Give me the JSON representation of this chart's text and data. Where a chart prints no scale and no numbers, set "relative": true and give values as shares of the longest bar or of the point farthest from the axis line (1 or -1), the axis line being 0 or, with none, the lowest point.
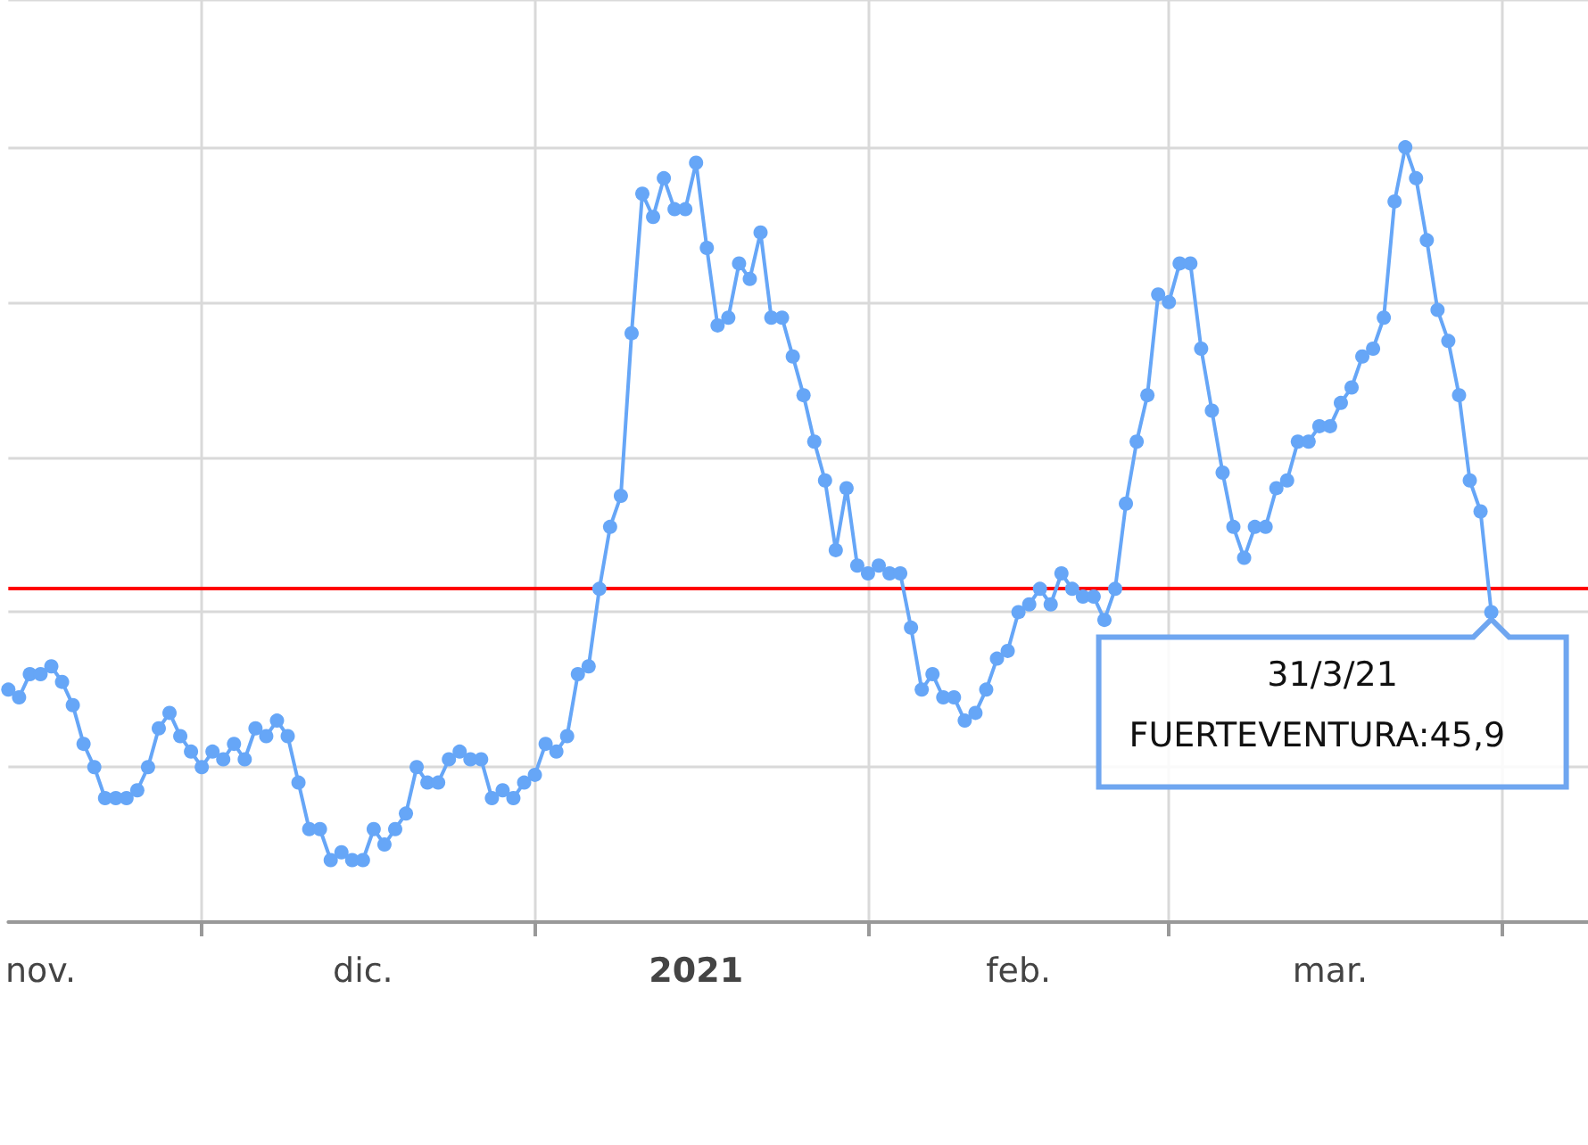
{
  "chart_data": {
    "type": "line",
    "relative": true,
    "grid": true,
    "marker": "circle",
    "line_style": "solid",
    "xlim": [
      "2020-11-13",
      "2021-04-09"
    ],
    "xticks": [
      {
        "value": "2020-11-16",
        "label": "nov."
      },
      {
        "value": "2020-12-01",
        "label": null
      },
      {
        "value": "2020-12-16",
        "label": "dic."
      },
      {
        "value": "2021-01-01",
        "label": null
      },
      {
        "value": "2021-01-16",
        "label": "2021"
      },
      {
        "value": "2021-02-01",
        "label": null
      },
      {
        "value": "2021-02-15",
        "label": "feb."
      },
      {
        "value": "2021-03-01",
        "label": null
      },
      {
        "value": "2021-03-16",
        "label": "mar."
      },
      {
        "value": "2021-04-01",
        "label": null
      }
    ],
    "x": [
      "2020-11-13",
      "2020-11-14",
      "2020-11-15",
      "2020-11-16",
      "2020-11-17",
      "2020-11-18",
      "2020-11-19",
      "2020-11-20",
      "2020-11-21",
      "2020-11-22",
      "2020-11-23",
      "2020-11-24",
      "2020-11-25",
      "2020-11-26",
      "2020-11-27",
      "2020-11-28",
      "2020-11-29",
      "2020-11-30",
      "2020-12-01",
      "2020-12-02",
      "2020-12-03",
      "2020-12-04",
      "2020-12-05",
      "2020-12-06",
      "2020-12-07",
      "2020-12-08",
      "2020-12-09",
      "2020-12-10",
      "2020-12-11",
      "2020-12-12",
      "2020-12-13",
      "2020-12-14",
      "2020-12-15",
      "2020-12-16",
      "2020-12-17",
      "2020-12-18",
      "2020-12-19",
      "2020-12-20",
      "2020-12-21",
      "2020-12-22",
      "2020-12-23",
      "2020-12-24",
      "2020-12-25",
      "2020-12-26",
      "2020-12-27",
      "2020-12-28",
      "2020-12-29",
      "2020-12-30",
      "2020-12-31",
      "2021-01-01",
      "2021-01-02",
      "2021-01-03",
      "2021-01-04",
      "2021-01-05",
      "2021-01-06",
      "2021-01-07",
      "2021-01-08",
      "2021-01-09",
      "2021-01-10",
      "2021-01-11",
      "2021-01-12",
      "2021-01-13",
      "2021-01-14",
      "2021-01-15",
      "2021-01-16",
      "2021-01-17",
      "2021-01-18",
      "2021-01-19",
      "2021-01-20",
      "2021-01-21",
      "2021-01-22",
      "2021-01-23",
      "2021-01-24",
      "2021-01-25",
      "2021-01-26",
      "2021-01-27",
      "2021-01-28",
      "2021-01-29",
      "2021-01-30",
      "2021-01-31",
      "2021-02-01",
      "2021-02-02",
      "2021-02-03",
      "2021-02-04",
      "2021-02-05",
      "2021-02-06",
      "2021-02-07",
      "2021-02-08",
      "2021-02-09",
      "2021-02-10",
      "2021-02-11",
      "2021-02-12",
      "2021-02-13",
      "2021-02-14",
      "2021-02-15",
      "2021-02-16",
      "2021-02-17",
      "2021-02-18",
      "2021-02-19",
      "2021-02-20",
      "2021-02-21",
      "2021-02-22",
      "2021-02-23",
      "2021-02-24",
      "2021-02-25",
      "2021-02-26",
      "2021-02-27",
      "2021-02-28",
      "2021-03-01",
      "2021-03-02",
      "2021-03-03",
      "2021-03-04",
      "2021-03-05",
      "2021-03-06",
      "2021-03-07",
      "2021-03-08",
      "2021-03-09",
      "2021-03-10",
      "2021-03-11",
      "2021-03-12",
      "2021-03-13",
      "2021-03-14",
      "2021-03-15",
      "2021-03-16",
      "2021-03-17",
      "2021-03-18",
      "2021-03-19",
      "2021-03-20",
      "2021-03-21",
      "2021-03-22",
      "2021-03-23",
      "2021-03-24",
      "2021-03-25",
      "2021-03-26",
      "2021-03-27",
      "2021-03-28",
      "2021-03-29",
      "2021-03-30",
      "2021-03-31"
    ],
    "series": [
      {
        "color": "#66a6f7",
        "values": [
          0.3,
          0.29,
          0.32,
          0.32,
          0.33,
          0.31,
          0.28,
          0.23,
          0.2,
          0.16,
          0.16,
          0.16,
          0.17,
          0.2,
          0.25,
          0.27,
          0.24,
          0.22,
          0.2,
          0.22,
          0.21,
          0.23,
          0.21,
          0.25,
          0.24,
          0.26,
          0.24,
          0.18,
          0.12,
          0.12,
          0.08,
          0.09,
          0.08,
          0.08,
          0.12,
          0.1,
          0.12,
          0.14,
          0.2,
          0.18,
          0.18,
          0.21,
          0.22,
          0.21,
          0.21,
          0.16,
          0.17,
          0.16,
          0.18,
          0.19,
          0.23,
          0.22,
          0.24,
          0.32,
          0.33,
          0.43,
          0.51,
          0.55,
          0.76,
          0.94,
          0.91,
          0.96,
          0.92,
          0.92,
          0.98,
          0.87,
          0.77,
          0.78,
          0.85,
          0.83,
          0.89,
          0.78,
          0.78,
          0.73,
          0.68,
          0.62,
          0.57,
          0.48,
          0.56,
          0.46,
          0.45,
          0.46,
          0.45,
          0.45,
          0.38,
          0.3,
          0.32,
          0.29,
          0.29,
          0.26,
          0.27,
          0.3,
          0.34,
          0.35,
          0.4,
          0.41,
          0.43,
          0.41,
          0.45,
          0.43,
          0.42,
          0.42,
          0.39,
          0.43,
          0.54,
          0.62,
          0.68,
          0.81,
          0.8,
          0.85,
          0.85,
          0.74,
          0.66,
          0.58,
          0.51,
          0.47,
          0.51,
          0.51,
          0.56,
          0.57,
          0.62,
          0.62,
          0.64,
          0.64,
          0.67,
          0.69,
          0.73,
          0.74,
          0.78,
          0.93,
          1,
          0.96,
          0.88,
          0.79,
          0.75,
          0.68,
          0.57,
          0.53,
          0.4
        ]
      }
    ],
    "ref_lines": [
      {
        "axis": "y",
        "value": 0.43,
        "color": "#ff0000"
      }
    ],
    "annotations": [
      "31/3/21",
      "FUERTEVENTURA:45,9"
    ]
  }
}
